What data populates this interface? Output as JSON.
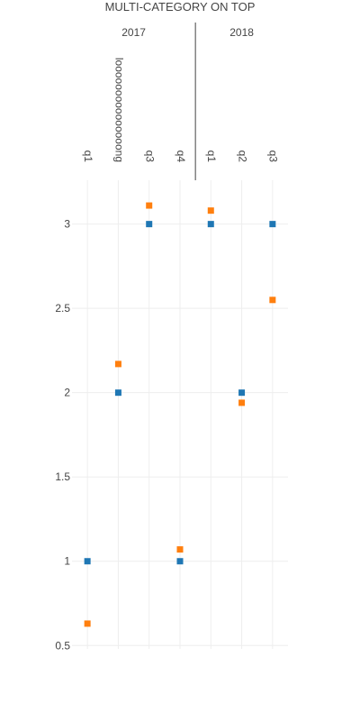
{
  "chart_data": {
    "type": "scatter",
    "title": "MULTI-CATEGORY ON TOP",
    "x_axis_position": "top",
    "x_groups": [
      {
        "label": "2017",
        "categories": [
          "q1",
          "looooooooooooooong",
          "q3",
          "q4"
        ]
      },
      {
        "label": "2018",
        "categories": [
          "q1",
          "q2",
          "q3"
        ]
      }
    ],
    "categories": [
      "q1",
      "looooooooooooooong",
      "q3",
      "q4",
      "q1",
      "q2",
      "q3"
    ],
    "ylim": [
      0.48,
      3.26
    ],
    "yticks": [
      0.5,
      1,
      1.5,
      2,
      2.5,
      3
    ],
    "ytick_labels": [
      "0.5",
      "1",
      "1.5",
      "2",
      "2.5",
      "3"
    ],
    "grid": true,
    "legend": "none",
    "series": [
      {
        "color": "#1f77b4",
        "marker": "square",
        "values": [
          1,
          2,
          3,
          1,
          3,
          2,
          3
        ]
      },
      {
        "color": "#ff7f0e",
        "marker": "square",
        "values": [
          0.63,
          2.17,
          3.11,
          1.07,
          3.08,
          1.94,
          2.55
        ]
      }
    ]
  }
}
